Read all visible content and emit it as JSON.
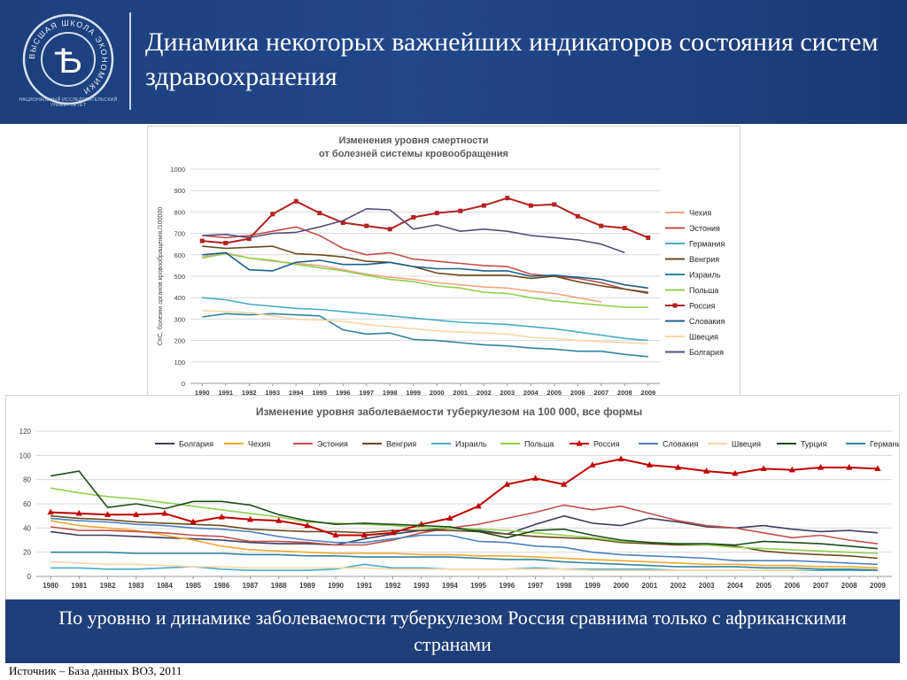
{
  "slide": {
    "title": "Динамика  некоторых  важнейших  индикаторов состояния систем здравоохранения",
    "logo_caption": "НАЦИОНАЛЬНЫЙ ИССЛЕДОВАТЕЛЬСКИЙ УНИВЕРСИТЕТ",
    "logo_ring_text": "ВЫСШАЯ ШКОЛА ЭКОНОМИКИ",
    "logo_letter": "Ѣ",
    "conclusion": "По уровню и динамике заболеваемости туберкулезом Россия сравнима только с африканскими странами",
    "source": "Источник – База данных ВОЗ, 2011"
  },
  "chart_data": [
    {
      "type": "line",
      "title": "Изменения уровня смертности\nот болезней системы кровообращения",
      "ylabel": "СКС, болезни органов кровообращения,/100000",
      "xlabel": "",
      "ylim": [
        0,
        1000
      ],
      "yticks": [
        0,
        100,
        200,
        300,
        400,
        500,
        600,
        700,
        800,
        900,
        1000
      ],
      "x": [
        "1990",
        "1991",
        "1992",
        "1993",
        "1994",
        "1995",
        "1996",
        "1997",
        "1998",
        "1999",
        "2000",
        "2001",
        "2002",
        "2003",
        "2004",
        "2005",
        "2006",
        "2007",
        "2008",
        "2009"
      ],
      "legend_position": "right",
      "grid": true,
      "series": [
        {
          "name": "Чехия",
          "color": "#f4a582",
          "values": [
            590,
            610,
            585,
            570,
            560,
            550,
            530,
            510,
            495,
            485,
            470,
            460,
            450,
            445,
            430,
            420,
            400,
            380,
            null,
            null
          ]
        },
        {
          "name": "Эстония",
          "color": "#c0504d",
          "values": [
            690,
            680,
            690,
            710,
            730,
            690,
            630,
            600,
            610,
            580,
            570,
            560,
            550,
            545,
            510,
            500,
            490,
            470,
            440,
            420
          ]
        },
        {
          "name": "Германия",
          "color": "#4aacc6",
          "values": [
            400,
            390,
            370,
            360,
            350,
            345,
            335,
            325,
            315,
            305,
            295,
            285,
            280,
            275,
            265,
            255,
            240,
            225,
            210,
            200
          ]
        },
        {
          "name": "Венгрия",
          "color": "#6b4a1f",
          "values": [
            640,
            630,
            635,
            640,
            605,
            600,
            590,
            570,
            565,
            545,
            515,
            505,
            505,
            505,
            490,
            500,
            475,
            455,
            440,
            425
          ]
        },
        {
          "name": "Израиль",
          "color": "#31859c",
          "values": [
            310,
            325,
            320,
            325,
            320,
            315,
            250,
            230,
            235,
            205,
            200,
            190,
            180,
            175,
            165,
            160,
            150,
            150,
            135,
            125
          ]
        },
        {
          "name": "Польша",
          "color": "#92d050",
          "values": [
            585,
            605,
            585,
            575,
            555,
            540,
            525,
            505,
            485,
            475,
            455,
            445,
            425,
            420,
            400,
            385,
            375,
            365,
            355,
            355
          ]
        },
        {
          "name": "Россия",
          "color": "#b22222",
          "values": [
            665,
            655,
            675,
            790,
            850,
            795,
            750,
            735,
            720,
            775,
            795,
            805,
            830,
            865,
            830,
            835,
            780,
            735,
            725,
            680
          ]
        },
        {
          "name": "Словакия",
          "color": "#1f5f8b",
          "values": [
            600,
            610,
            530,
            525,
            565,
            575,
            555,
            555,
            565,
            545,
            535,
            535,
            525,
            525,
            500,
            505,
            495,
            485,
            460,
            445
          ]
        },
        {
          "name": "Швеция",
          "color": "#fcd5a8",
          "values": [
            340,
            335,
            330,
            315,
            300,
            295,
            290,
            275,
            265,
            255,
            245,
            240,
            235,
            230,
            215,
            210,
            200,
            195,
            190,
            185
          ]
        },
        {
          "name": "Болгария",
          "color": "#5a4a7a",
          "values": [
            690,
            695,
            680,
            700,
            705,
            730,
            760,
            815,
            810,
            720,
            740,
            710,
            720,
            710,
            690,
            680,
            670,
            650,
            610,
            null
          ]
        }
      ]
    },
    {
      "type": "line",
      "title": "Изменение уровня заболеваемости туберкулезом на 100 000, все формы",
      "xlabel": "",
      "ylabel": "",
      "ylim": [
        0,
        120
      ],
      "yticks": [
        0,
        20,
        40,
        60,
        80,
        100,
        120
      ],
      "x": [
        "1980",
        "1981",
        "1982",
        "1983",
        "1984",
        "1985",
        "1986",
        "1987",
        "1988",
        "1989",
        "1990",
        "1991",
        "1992",
        "1993",
        "1994",
        "1995",
        "1996",
        "1997",
        "1998",
        "1999",
        "2000",
        "2001",
        "2002",
        "2003",
        "2004",
        "2005",
        "2006",
        "2007",
        "2008",
        "2009"
      ],
      "legend_position": "top",
      "grid": true,
      "series": [
        {
          "name": "Болгария",
          "color": "#3f3f5f",
          "values": [
            37,
            34,
            34,
            33,
            32,
            31,
            30,
            28,
            27,
            27,
            26,
            31,
            35,
            38,
            40,
            38,
            35,
            43,
            50,
            44,
            42,
            48,
            45,
            41,
            40,
            42,
            39,
            37,
            38,
            36
          ]
        },
        {
          "name": "Чехия",
          "color": "#f4a830",
          "values": [
            46,
            42,
            40,
            38,
            34,
            30,
            25,
            22,
            21,
            20,
            19,
            19,
            19,
            18,
            18,
            17,
            17,
            16,
            15,
            14,
            13,
            12,
            11,
            10,
            10,
            9,
            9,
            8,
            8,
            7
          ]
        },
        {
          "name": "Эстония",
          "color": "#c0504d",
          "values": [
            41,
            38,
            38,
            37,
            36,
            34,
            33,
            29,
            29,
            28,
            26,
            26,
            30,
            36,
            40,
            43,
            48,
            53,
            59,
            55,
            58,
            52,
            46,
            42,
            40,
            36,
            32,
            34,
            30,
            27
          ]
        },
        {
          "name": "Венгрия",
          "color": "#6b4a1f",
          "values": [
            50,
            48,
            47,
            45,
            44,
            43,
            42,
            39,
            38,
            37,
            37,
            36,
            38,
            38,
            38,
            37,
            35,
            33,
            32,
            31,
            28,
            27,
            26,
            26,
            25,
            21,
            19,
            18,
            17,
            15
          ]
        },
        {
          "name": "Израиль",
          "color": "#4aacc6",
          "values": [
            7,
            7,
            6,
            6,
            7,
            8,
            6,
            5,
            5,
            5,
            6,
            10,
            7,
            7,
            6,
            6,
            6,
            7,
            6,
            6,
            6,
            6,
            5,
            5,
            5,
            5,
            5,
            5,
            5,
            5
          ]
        },
        {
          "name": "Польша",
          "color": "#92d050",
          "values": [
            73,
            69,
            66,
            64,
            61,
            58,
            55,
            52,
            49,
            45,
            44,
            43,
            42,
            40,
            40,
            39,
            38,
            36,
            34,
            32,
            29,
            28,
            27,
            26,
            24,
            23,
            22,
            21,
            20,
            19
          ]
        },
        {
          "name": "Россия",
          "color": "#c00000",
          "values": [
            53,
            52,
            51,
            51,
            52,
            45,
            49,
            47,
            46,
            42,
            34,
            34,
            36,
            43,
            48,
            58,
            76,
            81,
            76,
            92,
            97,
            92,
            90,
            87,
            85,
            89,
            88,
            90,
            90,
            89
          ]
        },
        {
          "name": "Словакия",
          "color": "#4f81bd",
          "values": [
            48,
            46,
            45,
            43,
            42,
            40,
            39,
            37,
            33,
            30,
            28,
            28,
            31,
            34,
            34,
            29,
            28,
            25,
            24,
            20,
            18,
            17,
            16,
            15,
            13,
            13,
            13,
            12,
            11,
            10
          ]
        },
        {
          "name": "Швеция",
          "color": "#fcd5a8",
          "values": [
            12,
            11,
            10,
            10,
            9,
            8,
            8,
            7,
            7,
            7,
            7,
            7,
            6,
            6,
            6,
            6,
            6,
            6,
            6,
            5,
            5,
            5,
            5,
            5,
            5,
            5,
            5,
            6,
            6,
            6
          ]
        },
        {
          "name": "Турция",
          "color": "#1e4d1e",
          "values": [
            83,
            87,
            57,
            60,
            56,
            62,
            62,
            59,
            51,
            46,
            43,
            44,
            43,
            42,
            41,
            37,
            32,
            38,
            39,
            34,
            30,
            28,
            27,
            27,
            26,
            29,
            28,
            27,
            25,
            23
          ]
        },
        {
          "name": "Германия",
          "color": "#31859c",
          "values": [
            20,
            20,
            20,
            19,
            19,
            19,
            19,
            18,
            18,
            17,
            17,
            16,
            16,
            16,
            16,
            15,
            14,
            14,
            12,
            11,
            10,
            9,
            8,
            8,
            8,
            7,
            7,
            6,
            6,
            5
          ]
        }
      ]
    }
  ]
}
